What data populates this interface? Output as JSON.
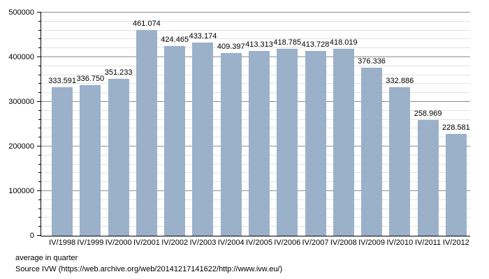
{
  "chart_data": {
    "type": "bar",
    "categories": [
      "IV/1998",
      "IV/1999",
      "IV/2000",
      "IV/2001",
      "IV/2002",
      "IV/2003",
      "IV/2004",
      "IV/2005",
      "IV/2006",
      "IV/2007",
      "IV/2008",
      "IV/2009",
      "IV/2010",
      "IV/2011",
      "IV/2012"
    ],
    "values": [
      333591,
      336750,
      351233,
      461074,
      424465,
      433174,
      409397,
      413313,
      418785,
      413728,
      418019,
      376336,
      332886,
      258969,
      228581
    ],
    "value_labels": [
      "333.591",
      "336.750",
      "351.233",
      "461.074",
      "424.465",
      "433.174",
      "409.397",
      "413.313",
      "418.785",
      "413.728",
      "418.019",
      "376.336",
      "332.886",
      "258.969",
      "228.581"
    ],
    "title": "",
    "xlabel": "",
    "ylabel": "",
    "ylim": [
      0,
      500000
    ],
    "y_major_step": 100000,
    "y_minor_step": 20000,
    "y_tick_labels": [
      "0",
      "100000",
      "200000",
      "300000",
      "400000",
      "500000"
    ],
    "grid": true,
    "legend_position": "none",
    "bar_color": "#9bb1ca",
    "grid_minor_color": "#e2e2e2",
    "grid_major_color": "#8f8f8f",
    "axis_color": "#000000"
  },
  "footer": {
    "note": "average in quarter",
    "source": "Source IVW (https://web.archive.org/web/20141217141622/http://www.ivw.eu/)"
  }
}
